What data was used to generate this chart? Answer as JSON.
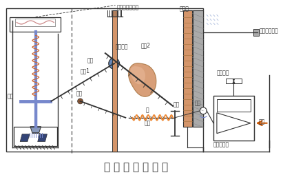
{
  "title": "气 动 阀 门 定 位 器",
  "title_fontsize": 11,
  "bg_color": "#ffffff",
  "bc": "#333333",
  "blue_stem": "#7788cc",
  "orange_coil": "#cc6633",
  "tan_cam": "#d4a574",
  "blue_dark": "#334477",
  "labels": {
    "top_valve": "气动薄膜调节阀",
    "bellows": "波纹管",
    "pressure_input": "压力信号输入",
    "lever1": "杠杆1",
    "lever2": "杠杆2",
    "cam": "偏心凸轮",
    "roller": "滚轮",
    "flat_plate": "平板",
    "rocker": "摆杆",
    "axle": "轴",
    "spring_label": "弹簧",
    "stopper": "挡板",
    "orifice": "恒节流孔",
    "nozzle": "喷嘴",
    "air_source": "气源",
    "amplifier": "气动放大器"
  }
}
